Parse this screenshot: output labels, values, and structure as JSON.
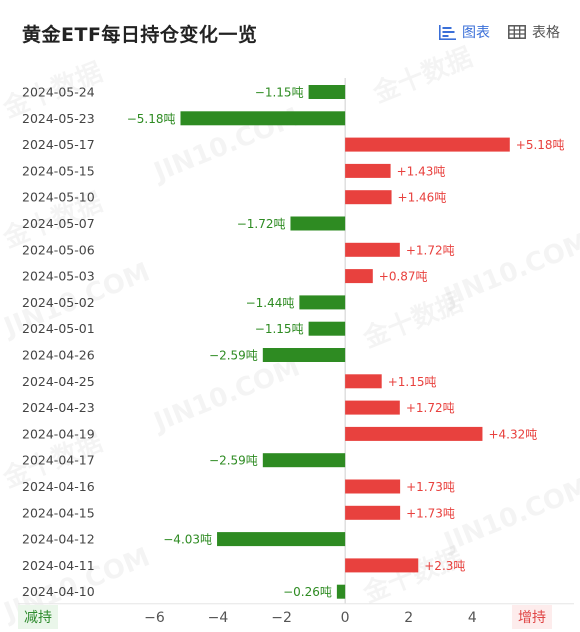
{
  "header": {
    "title": "黄金ETF每日持仓变化一览",
    "tab_chart": "图表",
    "tab_table": "表格"
  },
  "footer": {
    "left_label": "减持",
    "right_label": "增持"
  },
  "watermark": {
    "text_cn": "金十数据",
    "text_en": "JIN10.COM"
  },
  "colors": {
    "increase": "#e8413e",
    "decrease": "#2e8b22",
    "accent": "#3a6fd8"
  },
  "chart_data": {
    "type": "bar",
    "orientation": "horizontal",
    "unit": "吨",
    "categories": [
      "2024-05-24",
      "2024-05-23",
      "2024-05-17",
      "2024-05-15",
      "2024-05-10",
      "2024-05-07",
      "2024-05-06",
      "2024-05-03",
      "2024-05-02",
      "2024-05-01",
      "2024-04-26",
      "2024-04-25",
      "2024-04-23",
      "2024-04-19",
      "2024-04-17",
      "2024-04-16",
      "2024-04-15",
      "2024-04-12",
      "2024-04-11",
      "2024-04-10"
    ],
    "values": [
      -1.15,
      -5.18,
      5.18,
      1.43,
      1.46,
      -1.72,
      1.72,
      0.87,
      -1.44,
      -1.15,
      -2.59,
      1.15,
      1.72,
      4.32,
      -2.59,
      1.73,
      1.73,
      -4.03,
      2.3,
      -0.26
    ],
    "labels": [
      "−1.15吨",
      "−5.18吨",
      "+5.18吨",
      "+1.43吨",
      "+1.46吨",
      "−1.72吨",
      "+1.72吨",
      "+0.87吨",
      "−1.44吨",
      "−1.15吨",
      "−2.59吨",
      "+1.15吨",
      "+1.72吨",
      "+4.32吨",
      "−2.59吨",
      "+1.73吨",
      "+1.73吨",
      "−4.03吨",
      "+2.3吨",
      "−0.26吨"
    ],
    "xlim": [
      -6.8,
      7.2
    ],
    "xticks": [
      -6,
      -4,
      -2,
      0,
      2,
      4,
      6
    ],
    "xtick_labels": [
      "−6",
      "−4",
      "−2",
      "0",
      "2",
      "4",
      "6"
    ],
    "grid": false
  }
}
